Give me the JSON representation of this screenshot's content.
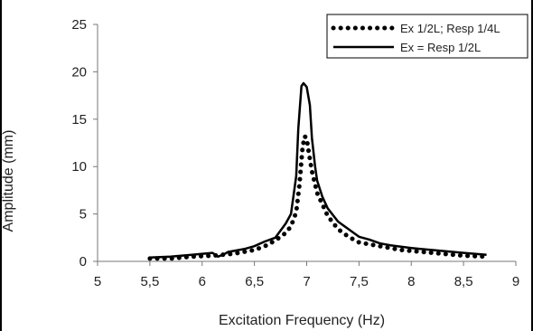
{
  "chart_data": {
    "type": "line",
    "title": "",
    "xlabel": "Excitation Frequency (Hz)",
    "ylabel": "Amplitude (mm)",
    "xlim": [
      5,
      9
    ],
    "ylim": [
      0,
      25
    ],
    "x_ticks": [
      "5",
      "5,5",
      "6",
      "6,5",
      "7",
      "7,5",
      "8",
      "8,5",
      "9"
    ],
    "y_ticks": [
      "0",
      "5",
      "10",
      "15",
      "20",
      "25"
    ],
    "grid": false,
    "legend_position": "top-right",
    "series": [
      {
        "name": "Ex 1/2L; Resp 1/4L",
        "style": "dotted",
        "color": "#000000",
        "x": [
          5.5,
          5.7,
          5.9,
          6.1,
          6.3,
          6.5,
          6.6,
          6.7,
          6.8,
          6.85,
          6.9,
          6.93,
          6.96,
          6.98,
          7.0,
          7.02,
          7.05,
          7.1,
          7.2,
          7.3,
          7.4,
          7.5,
          7.7,
          7.9,
          8.1,
          8.3,
          8.5,
          8.72
        ],
        "y": [
          0.3,
          0.3,
          0.5,
          0.6,
          0.8,
          1.2,
          1.6,
          2.2,
          3.0,
          3.7,
          5.2,
          8.0,
          12.0,
          13.2,
          13.0,
          11.5,
          9.5,
          7.2,
          4.8,
          3.4,
          2.6,
          2.0,
          1.6,
          1.2,
          1.0,
          0.8,
          0.6,
          0.5
        ]
      },
      {
        "name": "Ex = Resp 1/2L",
        "style": "solid",
        "color": "#000000",
        "x": [
          5.5,
          5.7,
          5.9,
          6.1,
          6.15,
          6.2,
          6.25,
          6.3,
          6.4,
          6.5,
          6.6,
          6.7,
          6.8,
          6.85,
          6.9,
          6.92,
          6.95,
          6.97,
          7.0,
          7.03,
          7.05,
          7.08,
          7.1,
          7.15,
          7.2,
          7.3,
          7.4,
          7.5,
          7.6,
          7.7,
          7.8,
          8.0,
          8.1,
          8.3,
          8.5,
          8.72
        ],
        "y": [
          0.4,
          0.5,
          0.7,
          0.9,
          0.5,
          0.7,
          1.0,
          1.1,
          1.3,
          1.6,
          2.1,
          2.5,
          4.0,
          5.0,
          9.0,
          14.0,
          18.5,
          18.8,
          18.4,
          16.5,
          13.0,
          10.0,
          8.5,
          6.8,
          5.6,
          4.2,
          3.4,
          2.6,
          2.3,
          1.9,
          1.7,
          1.4,
          1.3,
          1.1,
          0.9,
          0.7
        ]
      }
    ]
  }
}
